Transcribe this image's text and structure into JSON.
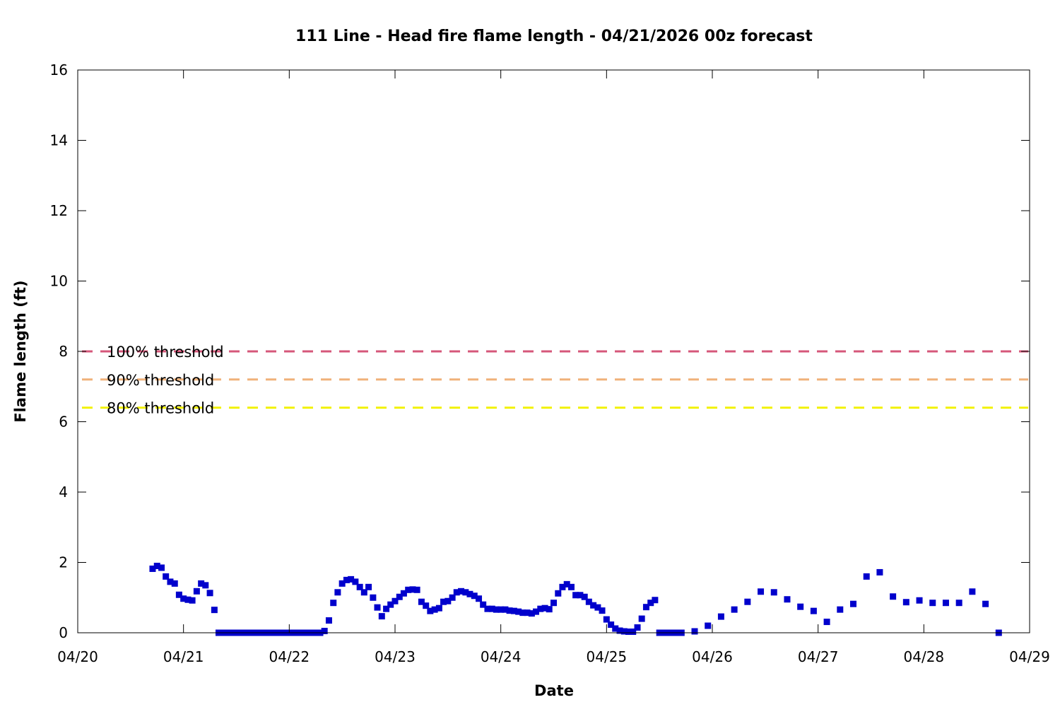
{
  "chart_data": {
    "type": "scatter",
    "title": "111 Line - Head fire flame length - 04/21/2026 00z forecast",
    "xlabel": "Date",
    "ylabel": "Flame length (ft)",
    "x_unit": "days (04/20 00z = 0)",
    "xlim": [
      0,
      9
    ],
    "ylim": [
      0,
      16
    ],
    "x_ticks": [
      {
        "value": 0,
        "label": "04/20"
      },
      {
        "value": 1,
        "label": "04/21"
      },
      {
        "value": 2,
        "label": "04/22"
      },
      {
        "value": 3,
        "label": "04/23"
      },
      {
        "value": 4,
        "label": "04/24"
      },
      {
        "value": 5,
        "label": "04/25"
      },
      {
        "value": 6,
        "label": "04/26"
      },
      {
        "value": 7,
        "label": "04/27"
      },
      {
        "value": 8,
        "label": "04/28"
      },
      {
        "value": 9,
        "label": "04/29"
      }
    ],
    "y_ticks": [
      0,
      2,
      4,
      6,
      8,
      10,
      12,
      14,
      16
    ],
    "grid": false,
    "marker_color": "#0000cc",
    "thresholds": [
      {
        "label": "100% threshold",
        "value": 8.0,
        "color": "#d6577a"
      },
      {
        "label": "90% threshold",
        "value": 7.2,
        "color": "#f0b27a"
      },
      {
        "label": "80% threshold",
        "value": 6.4,
        "color": "#f2f20a"
      }
    ],
    "series": [
      {
        "name": "",
        "points": [
          [
            0.708,
            1.82
          ],
          [
            0.75,
            1.9
          ],
          [
            0.792,
            1.85
          ],
          [
            0.833,
            1.6
          ],
          [
            0.875,
            1.45
          ],
          [
            0.917,
            1.4
          ],
          [
            0.958,
            1.08
          ],
          [
            1.0,
            0.97
          ],
          [
            1.042,
            0.94
          ],
          [
            1.083,
            0.92
          ],
          [
            1.125,
            1.18
          ],
          [
            1.167,
            1.4
          ],
          [
            1.208,
            1.35
          ],
          [
            1.25,
            1.13
          ],
          [
            1.292,
            0.65
          ],
          [
            1.333,
            0
          ],
          [
            1.375,
            0
          ],
          [
            1.417,
            0
          ],
          [
            1.458,
            0
          ],
          [
            1.5,
            0
          ],
          [
            1.542,
            0
          ],
          [
            1.583,
            0
          ],
          [
            1.625,
            0
          ],
          [
            1.667,
            0
          ],
          [
            1.708,
            0
          ],
          [
            1.75,
            0
          ],
          [
            1.792,
            0
          ],
          [
            1.833,
            0
          ],
          [
            1.875,
            0
          ],
          [
            1.917,
            0
          ],
          [
            1.958,
            0
          ],
          [
            2.0,
            0
          ],
          [
            2.042,
            0
          ],
          [
            2.083,
            0
          ],
          [
            2.125,
            0
          ],
          [
            2.167,
            0
          ],
          [
            2.208,
            0
          ],
          [
            2.25,
            0
          ],
          [
            2.292,
            0
          ],
          [
            2.333,
            0.05
          ],
          [
            2.375,
            0.35
          ],
          [
            2.417,
            0.85
          ],
          [
            2.458,
            1.15
          ],
          [
            2.5,
            1.4
          ],
          [
            2.542,
            1.5
          ],
          [
            2.583,
            1.52
          ],
          [
            2.625,
            1.45
          ],
          [
            2.667,
            1.3
          ],
          [
            2.708,
            1.15
          ],
          [
            2.75,
            1.3
          ],
          [
            2.792,
            1.0
          ],
          [
            2.833,
            0.72
          ],
          [
            2.875,
            0.47
          ],
          [
            2.917,
            0.68
          ],
          [
            2.958,
            0.8
          ],
          [
            3.0,
            0.9
          ],
          [
            3.042,
            1.02
          ],
          [
            3.083,
            1.12
          ],
          [
            3.125,
            1.22
          ],
          [
            3.167,
            1.23
          ],
          [
            3.208,
            1.22
          ],
          [
            3.25,
            0.88
          ],
          [
            3.292,
            0.77
          ],
          [
            3.333,
            0.62
          ],
          [
            3.375,
            0.66
          ],
          [
            3.417,
            0.7
          ],
          [
            3.458,
            0.88
          ],
          [
            3.5,
            0.9
          ],
          [
            3.542,
            1.0
          ],
          [
            3.583,
            1.15
          ],
          [
            3.625,
            1.18
          ],
          [
            3.667,
            1.15
          ],
          [
            3.708,
            1.1
          ],
          [
            3.75,
            1.05
          ],
          [
            3.792,
            0.97
          ],
          [
            3.833,
            0.8
          ],
          [
            3.875,
            0.68
          ],
          [
            3.917,
            0.68
          ],
          [
            3.958,
            0.66
          ],
          [
            4.0,
            0.66
          ],
          [
            4.042,
            0.66
          ],
          [
            4.083,
            0.63
          ],
          [
            4.125,
            0.62
          ],
          [
            4.167,
            0.6
          ],
          [
            4.208,
            0.57
          ],
          [
            4.25,
            0.57
          ],
          [
            4.292,
            0.55
          ],
          [
            4.333,
            0.6
          ],
          [
            4.375,
            0.68
          ],
          [
            4.417,
            0.7
          ],
          [
            4.458,
            0.67
          ],
          [
            4.5,
            0.85
          ],
          [
            4.542,
            1.12
          ],
          [
            4.583,
            1.3
          ],
          [
            4.625,
            1.38
          ],
          [
            4.667,
            1.3
          ],
          [
            4.708,
            1.07
          ],
          [
            4.75,
            1.07
          ],
          [
            4.792,
            1.02
          ],
          [
            4.833,
            0.88
          ],
          [
            4.875,
            0.78
          ],
          [
            4.917,
            0.72
          ],
          [
            4.958,
            0.63
          ],
          [
            5.0,
            0.38
          ],
          [
            5.042,
            0.23
          ],
          [
            5.083,
            0.12
          ],
          [
            5.125,
            0.06
          ],
          [
            5.167,
            0.04
          ],
          [
            5.208,
            0.03
          ],
          [
            5.25,
            0.03
          ],
          [
            5.292,
            0.15
          ],
          [
            5.333,
            0.4
          ],
          [
            5.375,
            0.73
          ],
          [
            5.417,
            0.85
          ],
          [
            5.458,
            0.93
          ],
          [
            5.5,
            0
          ],
          [
            5.542,
            0
          ],
          [
            5.583,
            0
          ],
          [
            5.625,
            0
          ],
          [
            5.667,
            0
          ],
          [
            5.708,
            0
          ],
          [
            5.833,
            0.04
          ],
          [
            5.958,
            0.2
          ],
          [
            6.083,
            0.46
          ],
          [
            6.208,
            0.66
          ],
          [
            6.333,
            0.88
          ],
          [
            6.458,
            1.17
          ],
          [
            6.583,
            1.15
          ],
          [
            6.708,
            0.95
          ],
          [
            6.833,
            0.74
          ],
          [
            6.958,
            0.62
          ],
          [
            7.083,
            0.31
          ],
          [
            7.208,
            0.66
          ],
          [
            7.333,
            0.82
          ],
          [
            7.458,
            1.6
          ],
          [
            7.583,
            1.72
          ],
          [
            7.708,
            1.03
          ],
          [
            7.833,
            0.87
          ],
          [
            7.958,
            0.92
          ],
          [
            8.083,
            0.85
          ],
          [
            8.208,
            0.85
          ],
          [
            8.333,
            0.85
          ],
          [
            8.458,
            1.17
          ],
          [
            8.583,
            0.82
          ],
          [
            8.708,
            0.0
          ]
        ]
      }
    ]
  }
}
